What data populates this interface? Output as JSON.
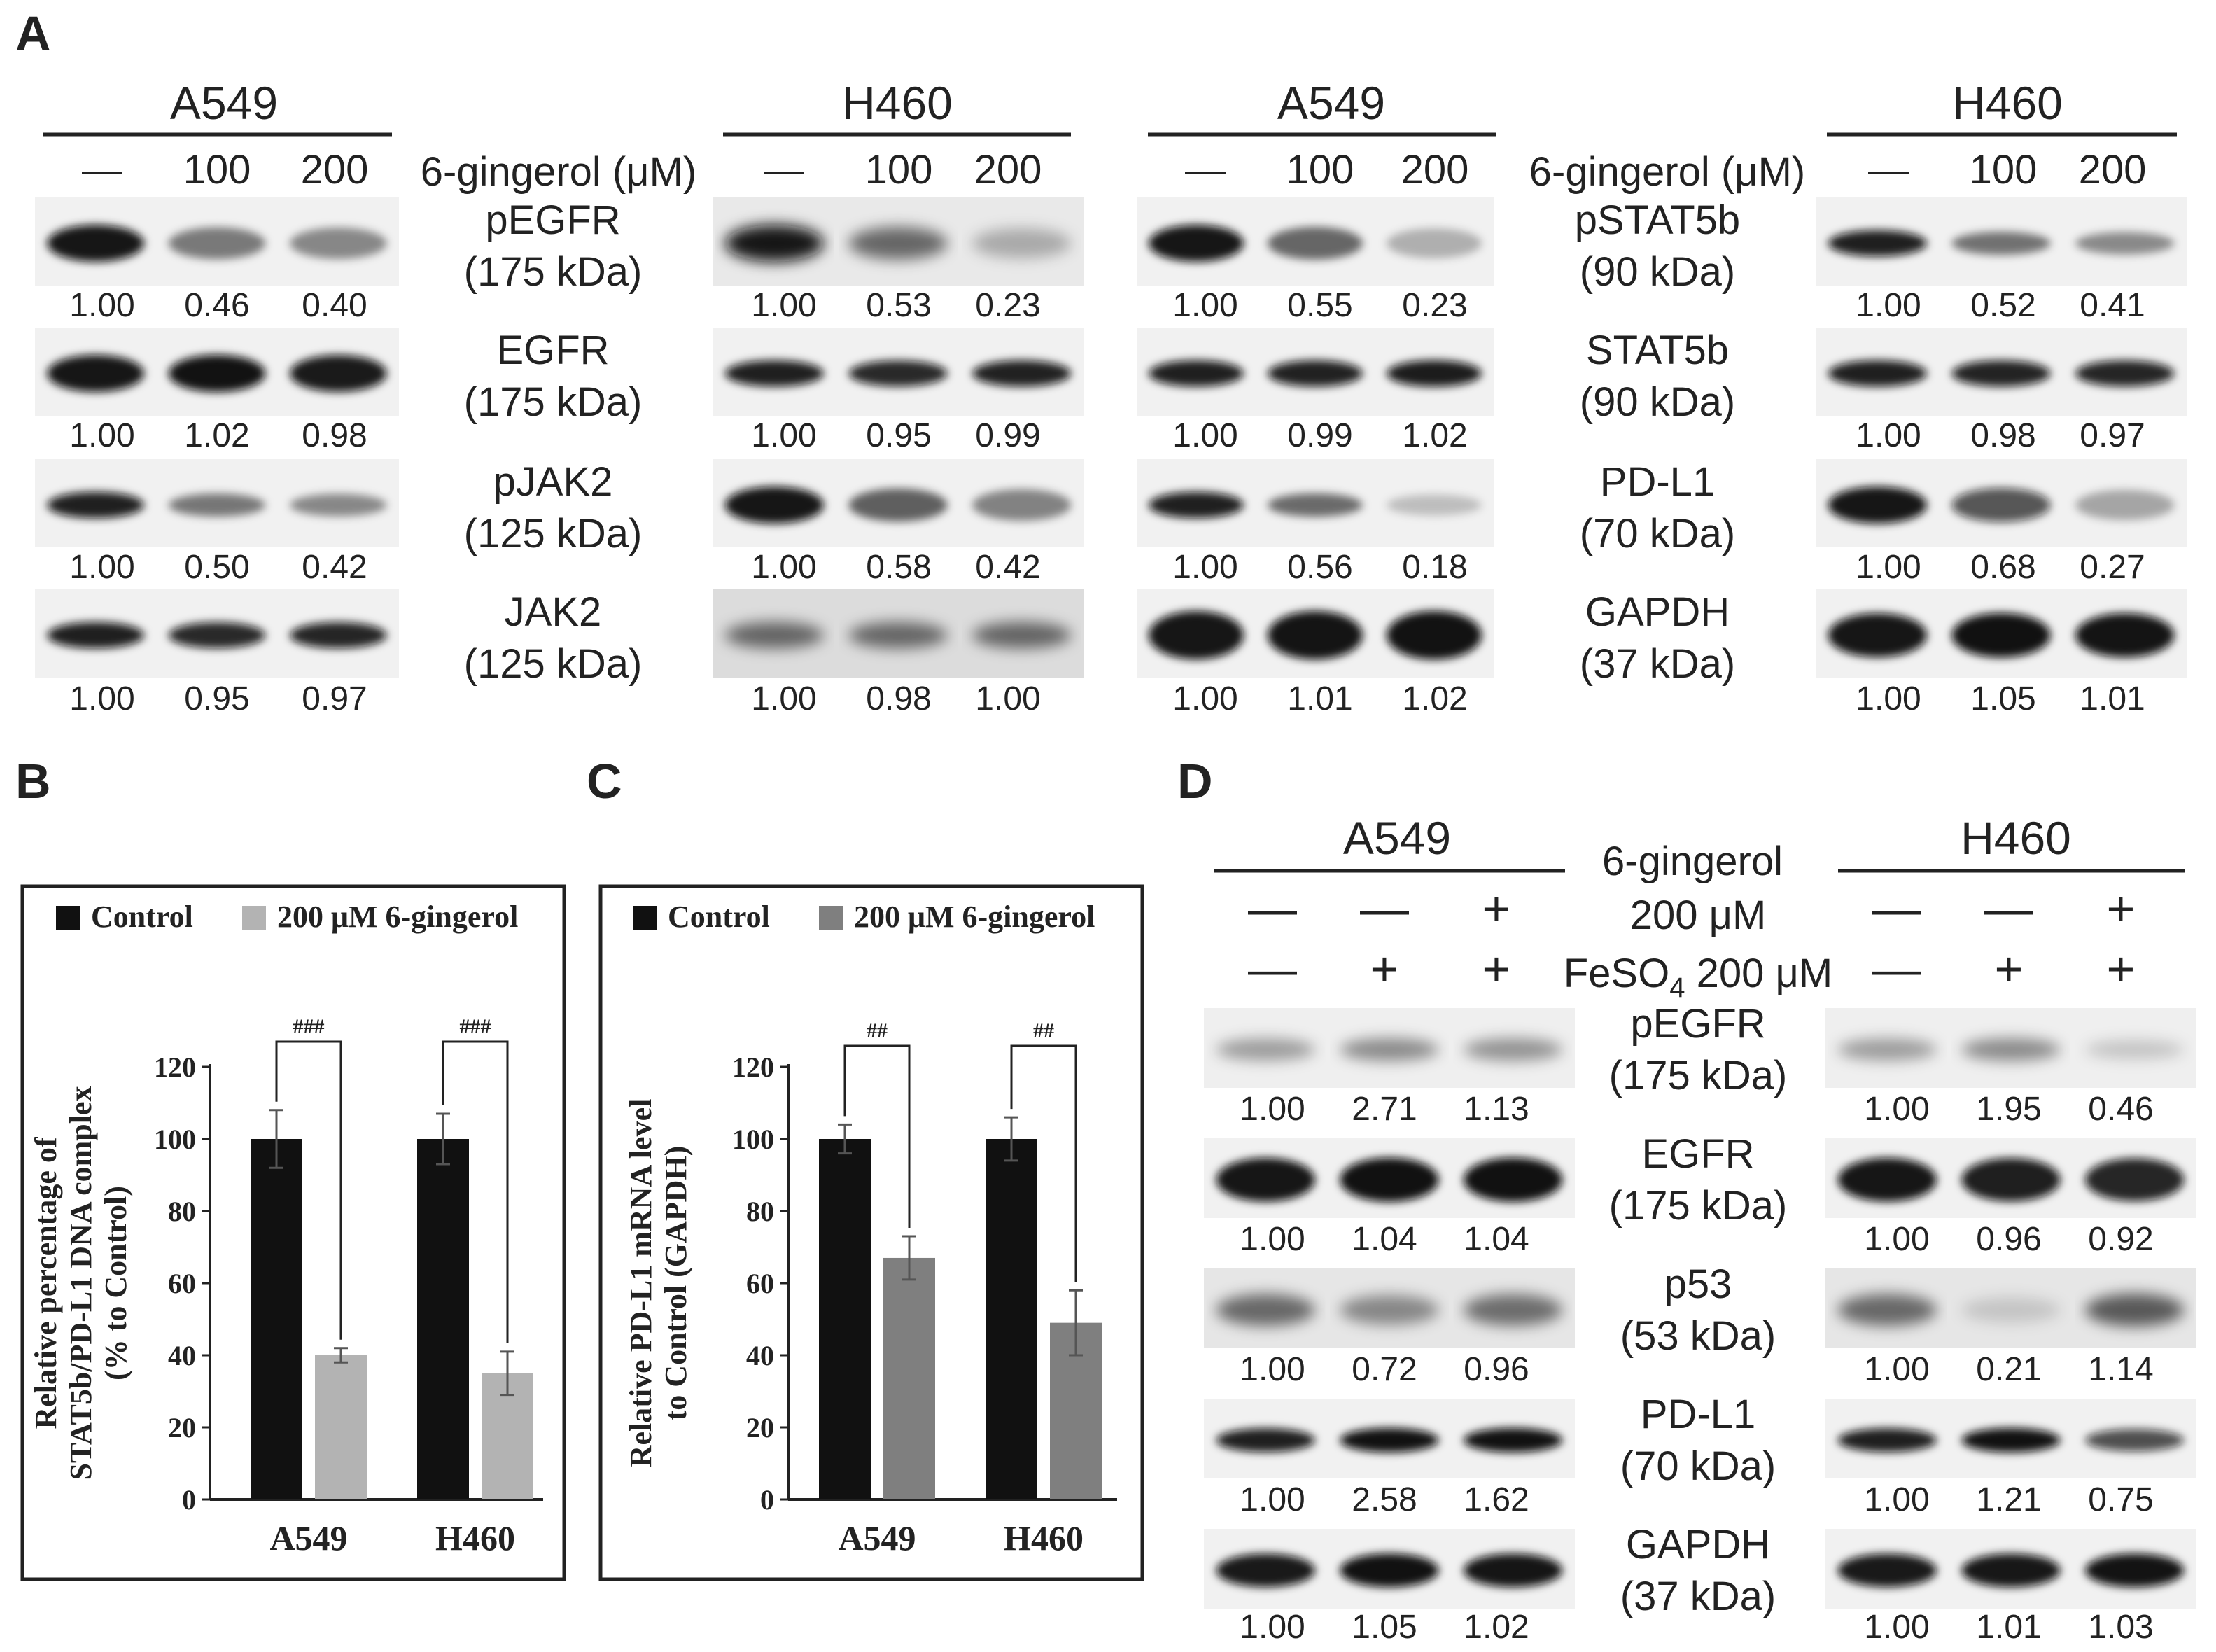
{
  "panel_letters": {
    "a": "A",
    "b": "B",
    "c": "C",
    "d": "D"
  },
  "panel_a": {
    "treatment_label": "6-gingerol (μM)",
    "dose_labels": [
      "—",
      "100",
      "200"
    ],
    "left": {
      "cell_lines": [
        "A549",
        "H460"
      ],
      "proteins": [
        {
          "name": "pEGFR",
          "size": "(175 kDa)"
        },
        {
          "name": "EGFR",
          "size": "(175 kDa)"
        },
        {
          "name": "pJAK2",
          "size": "(125 kDa)"
        },
        {
          "name": "JAK2",
          "size": "(125 kDa)"
        }
      ],
      "quant_a549": [
        [
          "1.00",
          "0.46",
          "0.40"
        ],
        [
          "1.00",
          "1.02",
          "0.98"
        ],
        [
          "1.00",
          "0.50",
          "0.42"
        ],
        [
          "1.00",
          "0.95",
          "0.97"
        ]
      ],
      "quant_h460": [
        [
          "1.00",
          "0.53",
          "0.23"
        ],
        [
          "1.00",
          "0.95",
          "0.99"
        ],
        [
          "1.00",
          "0.58",
          "0.42"
        ],
        [
          "1.00",
          "0.98",
          "1.00"
        ]
      ]
    },
    "right": {
      "cell_lines": [
        "A549",
        "H460"
      ],
      "proteins": [
        {
          "name": "pSTAT5b",
          "size": "(90 kDa)"
        },
        {
          "name": "STAT5b",
          "size": "(90 kDa)"
        },
        {
          "name": "PD-L1",
          "size": "(70 kDa)"
        },
        {
          "name": "GAPDH",
          "size": "(37 kDa)"
        }
      ],
      "quant_a549": [
        [
          "1.00",
          "0.55",
          "0.23"
        ],
        [
          "1.00",
          "0.99",
          "1.02"
        ],
        [
          "1.00",
          "0.56",
          "0.18"
        ],
        [
          "1.00",
          "1.01",
          "1.02"
        ]
      ],
      "quant_h460": [
        [
          "1.00",
          "0.52",
          "0.41"
        ],
        [
          "1.00",
          "0.98",
          "0.97"
        ],
        [
          "1.00",
          "0.68",
          "0.27"
        ],
        [
          "1.00",
          "1.05",
          "1.01"
        ]
      ]
    }
  },
  "panel_d": {
    "cell_lines": [
      "A549",
      "H460"
    ],
    "treatment_1_label_line1": "6-gingerol",
    "treatment_1_label_line2": "200 μM",
    "treatment_2_label": "FeSO",
    "treatment_2_subscript": "4",
    "treatment_2_suffix": " 200 μM",
    "gingerol_signs": [
      "—",
      "—",
      "+"
    ],
    "feso4_signs": [
      "—",
      "+",
      "+"
    ],
    "proteins": [
      {
        "name": "pEGFR",
        "size": "(175 kDa)"
      },
      {
        "name": "EGFR",
        "size": "(175 kDa)"
      },
      {
        "name": "p53",
        "size": "(53 kDa)"
      },
      {
        "name": "PD-L1",
        "size": "(70 kDa)"
      },
      {
        "name": "GAPDH",
        "size": "(37 kDa)"
      }
    ],
    "quant_a549": [
      [
        "1.00",
        "2.71",
        "1.13"
      ],
      [
        "1.00",
        "1.04",
        "1.04"
      ],
      [
        "1.00",
        "0.72",
        "0.96"
      ],
      [
        "1.00",
        "2.58",
        "1.62"
      ],
      [
        "1.00",
        "1.05",
        "1.02"
      ]
    ],
    "quant_h460": [
      [
        "1.00",
        "1.95",
        "0.46"
      ],
      [
        "1.00",
        "0.96",
        "0.92"
      ],
      [
        "1.00",
        "0.21",
        "1.14"
      ],
      [
        "1.00",
        "1.21",
        "0.75"
      ],
      [
        "1.00",
        "1.01",
        "1.03"
      ]
    ]
  },
  "chart_data": [
    {
      "panel": "B",
      "type": "bar",
      "categories": [
        "A549",
        "H460"
      ],
      "series": [
        {
          "name": "Control",
          "color": "#111111",
          "values": [
            100,
            100
          ],
          "errors": [
            8,
            7
          ]
        },
        {
          "name": "200 μM 6-gingerol",
          "color": "#b3b3b3",
          "values": [
            40,
            35
          ],
          "errors": [
            2,
            6
          ]
        }
      ],
      "significance": [
        "###",
        "###"
      ],
      "ylabel": "Relative percentage of STAT5b/PD-L1 DNA complex (% to Control)",
      "ylim": [
        0,
        120
      ],
      "yticks": [
        0,
        20,
        40,
        60,
        80,
        100,
        120
      ],
      "legend": "top",
      "grid": false
    },
    {
      "panel": "C",
      "type": "bar",
      "categories": [
        "A549",
        "H460"
      ],
      "series": [
        {
          "name": "Control",
          "color": "#111111",
          "values": [
            100,
            100
          ],
          "errors": [
            4,
            6
          ]
        },
        {
          "name": "200 μM 6-gingerol",
          "color": "#7f7f7f",
          "values": [
            67,
            49
          ],
          "errors": [
            6,
            9
          ]
        }
      ],
      "significance": [
        "##",
        "##"
      ],
      "ylabel": "Relative PD-L1 mRNA level to Control (GAPDH)",
      "ylim": [
        0,
        120
      ],
      "yticks": [
        0,
        20,
        40,
        60,
        80,
        100,
        120
      ],
      "legend": "top",
      "grid": false
    }
  ]
}
